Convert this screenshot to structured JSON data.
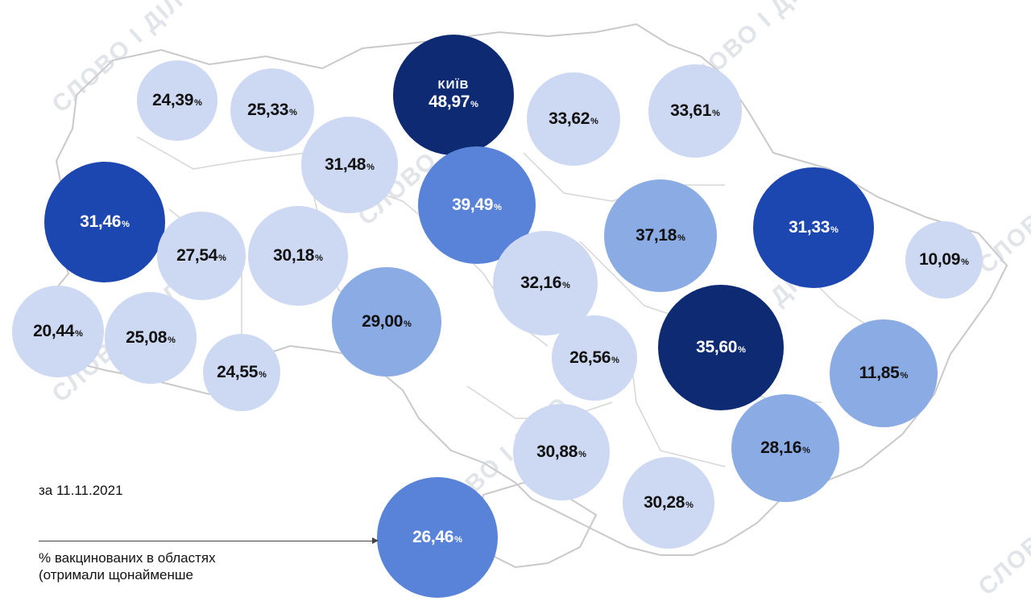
{
  "date_label": "за 11.11.2021",
  "legend_text_line1": "% вакцинованих в областях",
  "legend_text_line2": "(отримали щонайменше",
  "watermark_text": "СЛОВО І ДІЛО",
  "pct_sign": "%",
  "colors": {
    "level1": "#cdd9f2",
    "level2": "#8aabe4",
    "level3": "#5983d9",
    "level4": "#1c46b0",
    "level5": "#0d2a72",
    "outline": "#c9c9c9"
  },
  "regions": [
    {
      "value": "24,39",
      "level": "level1"
    },
    {
      "value": "25,33",
      "level": "level1"
    },
    {
      "city": "КИЇВ",
      "value": "48,97",
      "level": "level5"
    },
    {
      "value": "33,62",
      "level": "level1"
    },
    {
      "value": "33,61",
      "level": "level1"
    },
    {
      "value": "31,48",
      "level": "level1"
    },
    {
      "value": "39,49",
      "level": "level3"
    },
    {
      "value": "31,46",
      "level": "level4"
    },
    {
      "value": "27,54",
      "level": "level1"
    },
    {
      "value": "30,18",
      "level": "level1"
    },
    {
      "value": "37,18",
      "level": "level2"
    },
    {
      "value": "31,33",
      "level": "level4"
    },
    {
      "value": "10,09",
      "level": "level1"
    },
    {
      "value": "32,16",
      "level": "level1"
    },
    {
      "value": "29,00",
      "level": "level2"
    },
    {
      "value": "20,44",
      "level": "level1"
    },
    {
      "value": "25,08",
      "level": "level1"
    },
    {
      "value": "24,55",
      "level": "level1"
    },
    {
      "value": "26,56",
      "level": "level1"
    },
    {
      "value": "35,60",
      "level": "level5"
    },
    {
      "value": "11,85",
      "level": "level2"
    },
    {
      "value": "30,88",
      "level": "level1"
    },
    {
      "value": "28,16",
      "level": "level2"
    },
    {
      "value": "30,28",
      "level": "level1"
    },
    {
      "value": "26,46",
      "level": "level3"
    }
  ]
}
